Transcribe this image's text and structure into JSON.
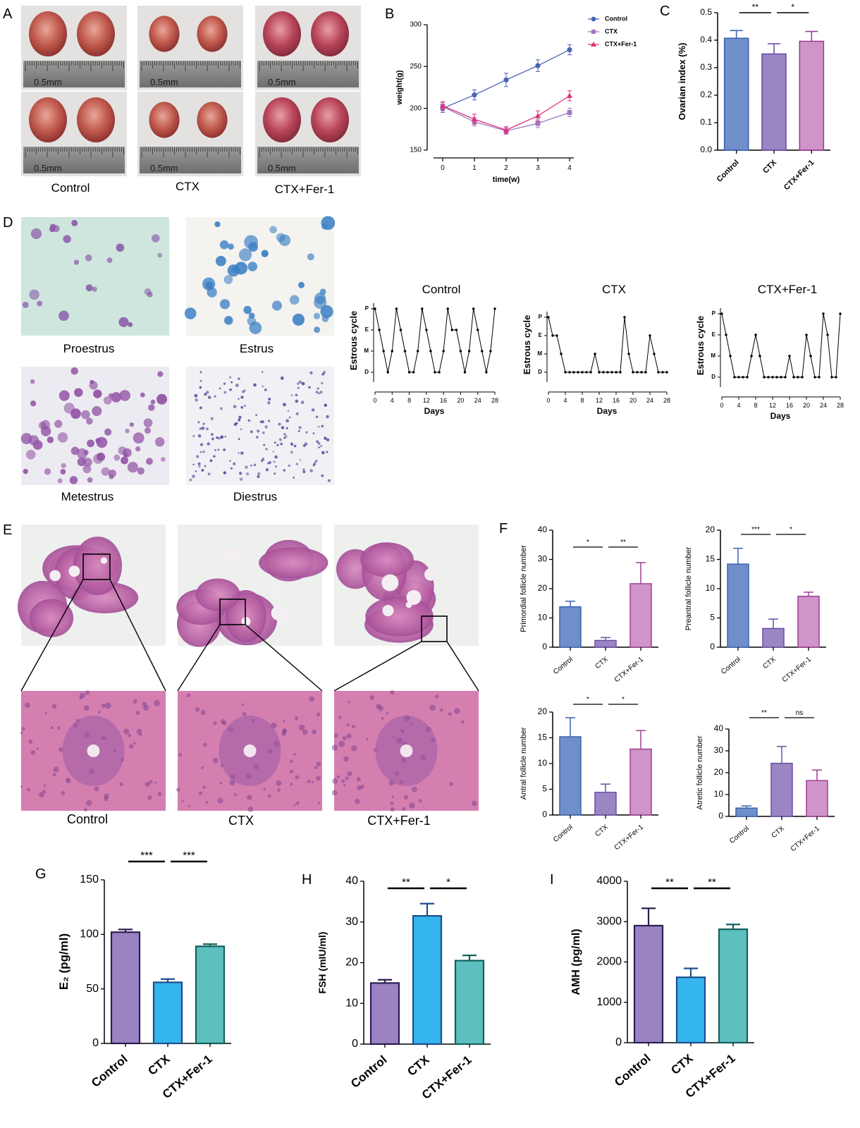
{
  "panels": {
    "A": "A",
    "B": "B",
    "C": "C",
    "D": "D",
    "E": "E",
    "F": "F",
    "G": "G",
    "H": "H",
    "I": "I"
  },
  "photos": {
    "A_labels": [
      "Control",
      "CTX",
      "CTX+Fer-1"
    ],
    "ruler_text": "0.5mm",
    "D_labels": [
      "Proestrus",
      "Estrus",
      "Metestrus",
      "Diestrus"
    ],
    "E_labels": [
      "Control",
      "CTX",
      "CTX+Fer-1"
    ]
  },
  "colors": {
    "control_blue": "#4a64b4",
    "ctx_purple": "#a076c0",
    "fer_pink": "#e0307a",
    "bar_blue": "#6f8fca",
    "bar_purple": "#9b86c4",
    "bar_pink": "#cf95c9",
    "g_purple": "#9a82c3",
    "g_cyan": "#35b5ee",
    "g_teal": "#5ec0be"
  },
  "chart_data": [
    {
      "id": "B",
      "type": "line",
      "xlabel": "time(w)",
      "ylabel": "weight(g)",
      "x": [
        0,
        1,
        2,
        3,
        4
      ],
      "xticks": [
        "0",
        "1",
        "2",
        "3",
        "4"
      ],
      "ylim": [
        150,
        300
      ],
      "yticks": [
        150,
        200,
        250,
        300
      ],
      "series": [
        {
          "name": "Control",
          "values": [
            200,
            216,
            234,
            251,
            270
          ],
          "err": [
            5,
            6,
            8,
            7,
            6
          ]
        },
        {
          "name": "CTX",
          "values": [
            202,
            184,
            173,
            182,
            195
          ],
          "err": [
            5,
            5,
            4,
            5,
            5
          ]
        },
        {
          "name": "CTX+Fer-1",
          "values": [
            203,
            187,
            174,
            191,
            215
          ],
          "err": [
            5,
            6,
            4,
            6,
            6
          ]
        }
      ]
    },
    {
      "id": "C",
      "type": "bar",
      "ylabel": "Ovarian index (%)",
      "categories": [
        "Control",
        "CTX",
        "CTX+Fer-1"
      ],
      "values": [
        0.407,
        0.35,
        0.396
      ],
      "err": [
        0.028,
        0.037,
        0.036
      ],
      "ylim": [
        0,
        0.5
      ],
      "yticks": [
        "0.0",
        "0.1",
        "0.2",
        "0.3",
        "0.4",
        "0.5"
      ],
      "sig": [
        "**",
        "*"
      ]
    },
    {
      "id": "D1",
      "type": "line",
      "title": "Control",
      "xlabel": "Days",
      "ylabel": "Estrous cycle",
      "xticks": [
        "0",
        "4",
        "8",
        "12",
        "16",
        "20",
        "24",
        "28"
      ],
      "yticks": [
        "D",
        "M",
        "E",
        "P"
      ],
      "values": [
        3,
        2,
        1,
        0,
        1,
        3,
        2,
        1,
        0,
        0,
        1,
        3,
        2,
        1,
        0,
        0,
        1,
        3,
        2,
        2,
        1,
        0,
        1,
        3,
        2,
        1,
        0,
        1,
        3
      ]
    },
    {
      "id": "D2",
      "type": "line",
      "title": "CTX",
      "xlabel": "Days",
      "ylabel": "Estrous cycle",
      "xticks": [
        "0",
        "4",
        "8",
        "12",
        "16",
        "20",
        "24",
        "28"
      ],
      "yticks": [
        "D",
        "M",
        "E",
        "P"
      ],
      "values": [
        3,
        2,
        2,
        1,
        0,
        0,
        0,
        0,
        0,
        0,
        0,
        1,
        0,
        0,
        0,
        0,
        0,
        0,
        3,
        1,
        0,
        0,
        0,
        0,
        2,
        1,
        0,
        0,
        0
      ]
    },
    {
      "id": "D3",
      "type": "line",
      "title": "CTX+Fer-1",
      "xlabel": "Days",
      "ylabel": "Estrous cycle",
      "xticks": [
        "0",
        "4",
        "8",
        "12",
        "16",
        "20",
        "24",
        "28"
      ],
      "yticks": [
        "D",
        "M",
        "E",
        "P"
      ],
      "values": [
        3,
        2,
        1,
        0,
        0,
        0,
        0,
        1,
        2,
        1,
        0,
        0,
        0,
        0,
        0,
        0,
        1,
        0,
        0,
        0,
        2,
        1,
        0,
        0,
        3,
        2,
        0,
        0,
        3
      ]
    },
    {
      "id": "F1",
      "type": "bar",
      "ylabel": "Primordial follicle number",
      "categories": [
        "Control",
        "CTX",
        "CTX+Fer-1"
      ],
      "values": [
        13.8,
        2.3,
        21.7
      ],
      "err": [
        1.9,
        1.0,
        7.2
      ],
      "ylim": [
        0,
        40
      ],
      "yticks": [
        "0",
        "10",
        "20",
        "30",
        "40"
      ],
      "sig": [
        "*",
        "**"
      ]
    },
    {
      "id": "F2",
      "type": "bar",
      "ylabel": "Preantral follicle number",
      "categories": [
        "Control",
        "CTX",
        "CTX+Fer-1"
      ],
      "values": [
        14.2,
        3.2,
        8.7
      ],
      "err": [
        2.7,
        1.6,
        0.7
      ],
      "ylim": [
        0,
        20
      ],
      "yticks": [
        "0",
        "5",
        "10",
        "15",
        "20"
      ],
      "sig": [
        "***",
        "*"
      ]
    },
    {
      "id": "F3",
      "type": "bar",
      "ylabel": "Antral follicle number",
      "categories": [
        "Control",
        "CTX",
        "CTX+Fer-1"
      ],
      "values": [
        15.2,
        4.4,
        12.8
      ],
      "err": [
        3.7,
        1.6,
        3.6
      ],
      "ylim": [
        0,
        20
      ],
      "yticks": [
        "0",
        "5",
        "10",
        "15",
        "20"
      ],
      "sig": [
        "*",
        "*"
      ]
    },
    {
      "id": "F4",
      "type": "bar",
      "ylabel": "Atretic follicle number",
      "categories": [
        "Control",
        "CTX",
        "CTX+Fer-1"
      ],
      "values": [
        3.8,
        24.3,
        16.4
      ],
      "err": [
        1.0,
        7.7,
        4.8
      ],
      "ylim": [
        0,
        40
      ],
      "yticks": [
        "0",
        "10",
        "20",
        "30",
        "40"
      ],
      "sig": [
        "**",
        "ns"
      ]
    },
    {
      "id": "G",
      "type": "bar",
      "ylabel": "E₂ (pg/ml)",
      "categories": [
        "Control",
        "CTX",
        "CTX+Fer-1"
      ],
      "values": [
        102,
        56,
        89
      ],
      "err": [
        2.5,
        3,
        2
      ],
      "ylim": [
        0,
        150
      ],
      "yticks": [
        "0",
        "50",
        "100",
        "150"
      ],
      "sig": [
        "***",
        "***"
      ]
    },
    {
      "id": "H",
      "type": "bar",
      "ylabel": "FSH (mIU/ml)",
      "categories": [
        "Control",
        "CTX",
        "CTX+Fer-1"
      ],
      "values": [
        15,
        31.5,
        20.5
      ],
      "err": [
        0.8,
        3,
        1.3
      ],
      "ylim": [
        0,
        40
      ],
      "yticks": [
        "0",
        "10",
        "20",
        "30",
        "40"
      ],
      "sig": [
        "**",
        "*"
      ]
    },
    {
      "id": "I",
      "type": "bar",
      "ylabel": "AMH (pg/ml)",
      "categories": [
        "Control",
        "CTX",
        "CTX+Fer-1"
      ],
      "values": [
        2900,
        1620,
        2810
      ],
      "err": [
        430,
        220,
        120
      ],
      "ylim": [
        0,
        4000
      ],
      "yticks": [
        "0",
        "1000",
        "2000",
        "3000",
        "4000"
      ],
      "sig": [
        "**",
        "**"
      ]
    }
  ]
}
